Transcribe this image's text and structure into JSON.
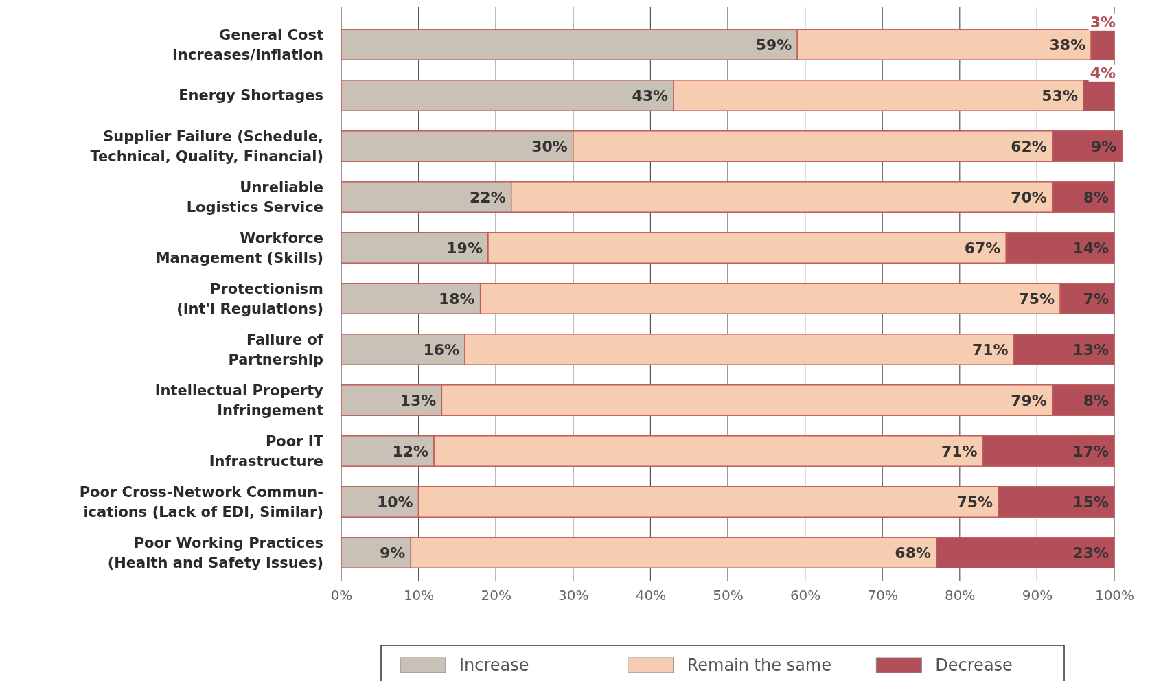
{
  "chart_data": {
    "type": "bar",
    "orientation": "horizontal",
    "stacked": true,
    "categories": [
      "General Cost\nIncreases/Inflation",
      "Energy Shortages",
      "Supplier Failure (Schedule,\nTechnical, Quality, Financial)",
      "Unreliable\nLogistics Service",
      "Workforce\nManagement (Skills)",
      "Protectionism\n(Int'l Regulations)",
      "Failure of\nPartnership",
      "Intellectual Property\nInfringement",
      "Poor IT\nInfrastructure",
      "Poor Cross-Network Commun-\nications (Lack of EDI, Similar)",
      "Poor Working Practices\n(Health and Safety Issues)"
    ],
    "series": [
      {
        "name": "Increase",
        "color": "#c9c0b6",
        "values": [
          59,
          43,
          30,
          22,
          19,
          18,
          16,
          13,
          12,
          10,
          9
        ],
        "value_labels": [
          "59%",
          "43%",
          "30%",
          "22%",
          "19%",
          "18%",
          "16%",
          "13%",
          "12%",
          "10%",
          "9%"
        ]
      },
      {
        "name": "Remain the same",
        "color": "#f6cdb0",
        "values": [
          38,
          53,
          62,
          70,
          67,
          75,
          71,
          79,
          71,
          75,
          68
        ],
        "value_labels": [
          "38%",
          "53%",
          "62%",
          "70%",
          "67%",
          "75%",
          "71%",
          "79%",
          "71%",
          "75%",
          "68%"
        ]
      },
      {
        "name": "Decrease",
        "color": "#b34f58",
        "values": [
          3,
          4,
          9,
          8,
          14,
          7,
          13,
          8,
          17,
          15,
          23
        ],
        "value_labels": [
          "3%",
          "4%",
          "9%",
          "8%",
          "14%",
          "7%",
          "13%",
          "8%",
          "17%",
          "15%",
          "23%"
        ]
      }
    ],
    "xlim": [
      0,
      101
    ],
    "xticks": [
      {
        "value": 0,
        "label": "0%"
      },
      {
        "value": 10,
        "label": "10%"
      },
      {
        "value": 20,
        "label": "20%"
      },
      {
        "value": 30,
        "label": "30%"
      },
      {
        "value": 40,
        "label": "40%"
      },
      {
        "value": 50,
        "label": "50%"
      },
      {
        "value": 60,
        "label": "60%"
      },
      {
        "value": 70,
        "label": "70%"
      },
      {
        "value": 80,
        "label": "80%"
      },
      {
        "value": 90,
        "label": "90%"
      },
      {
        "value": 100,
        "label": "100%"
      }
    ],
    "grid": "x",
    "legend": "bottom"
  }
}
